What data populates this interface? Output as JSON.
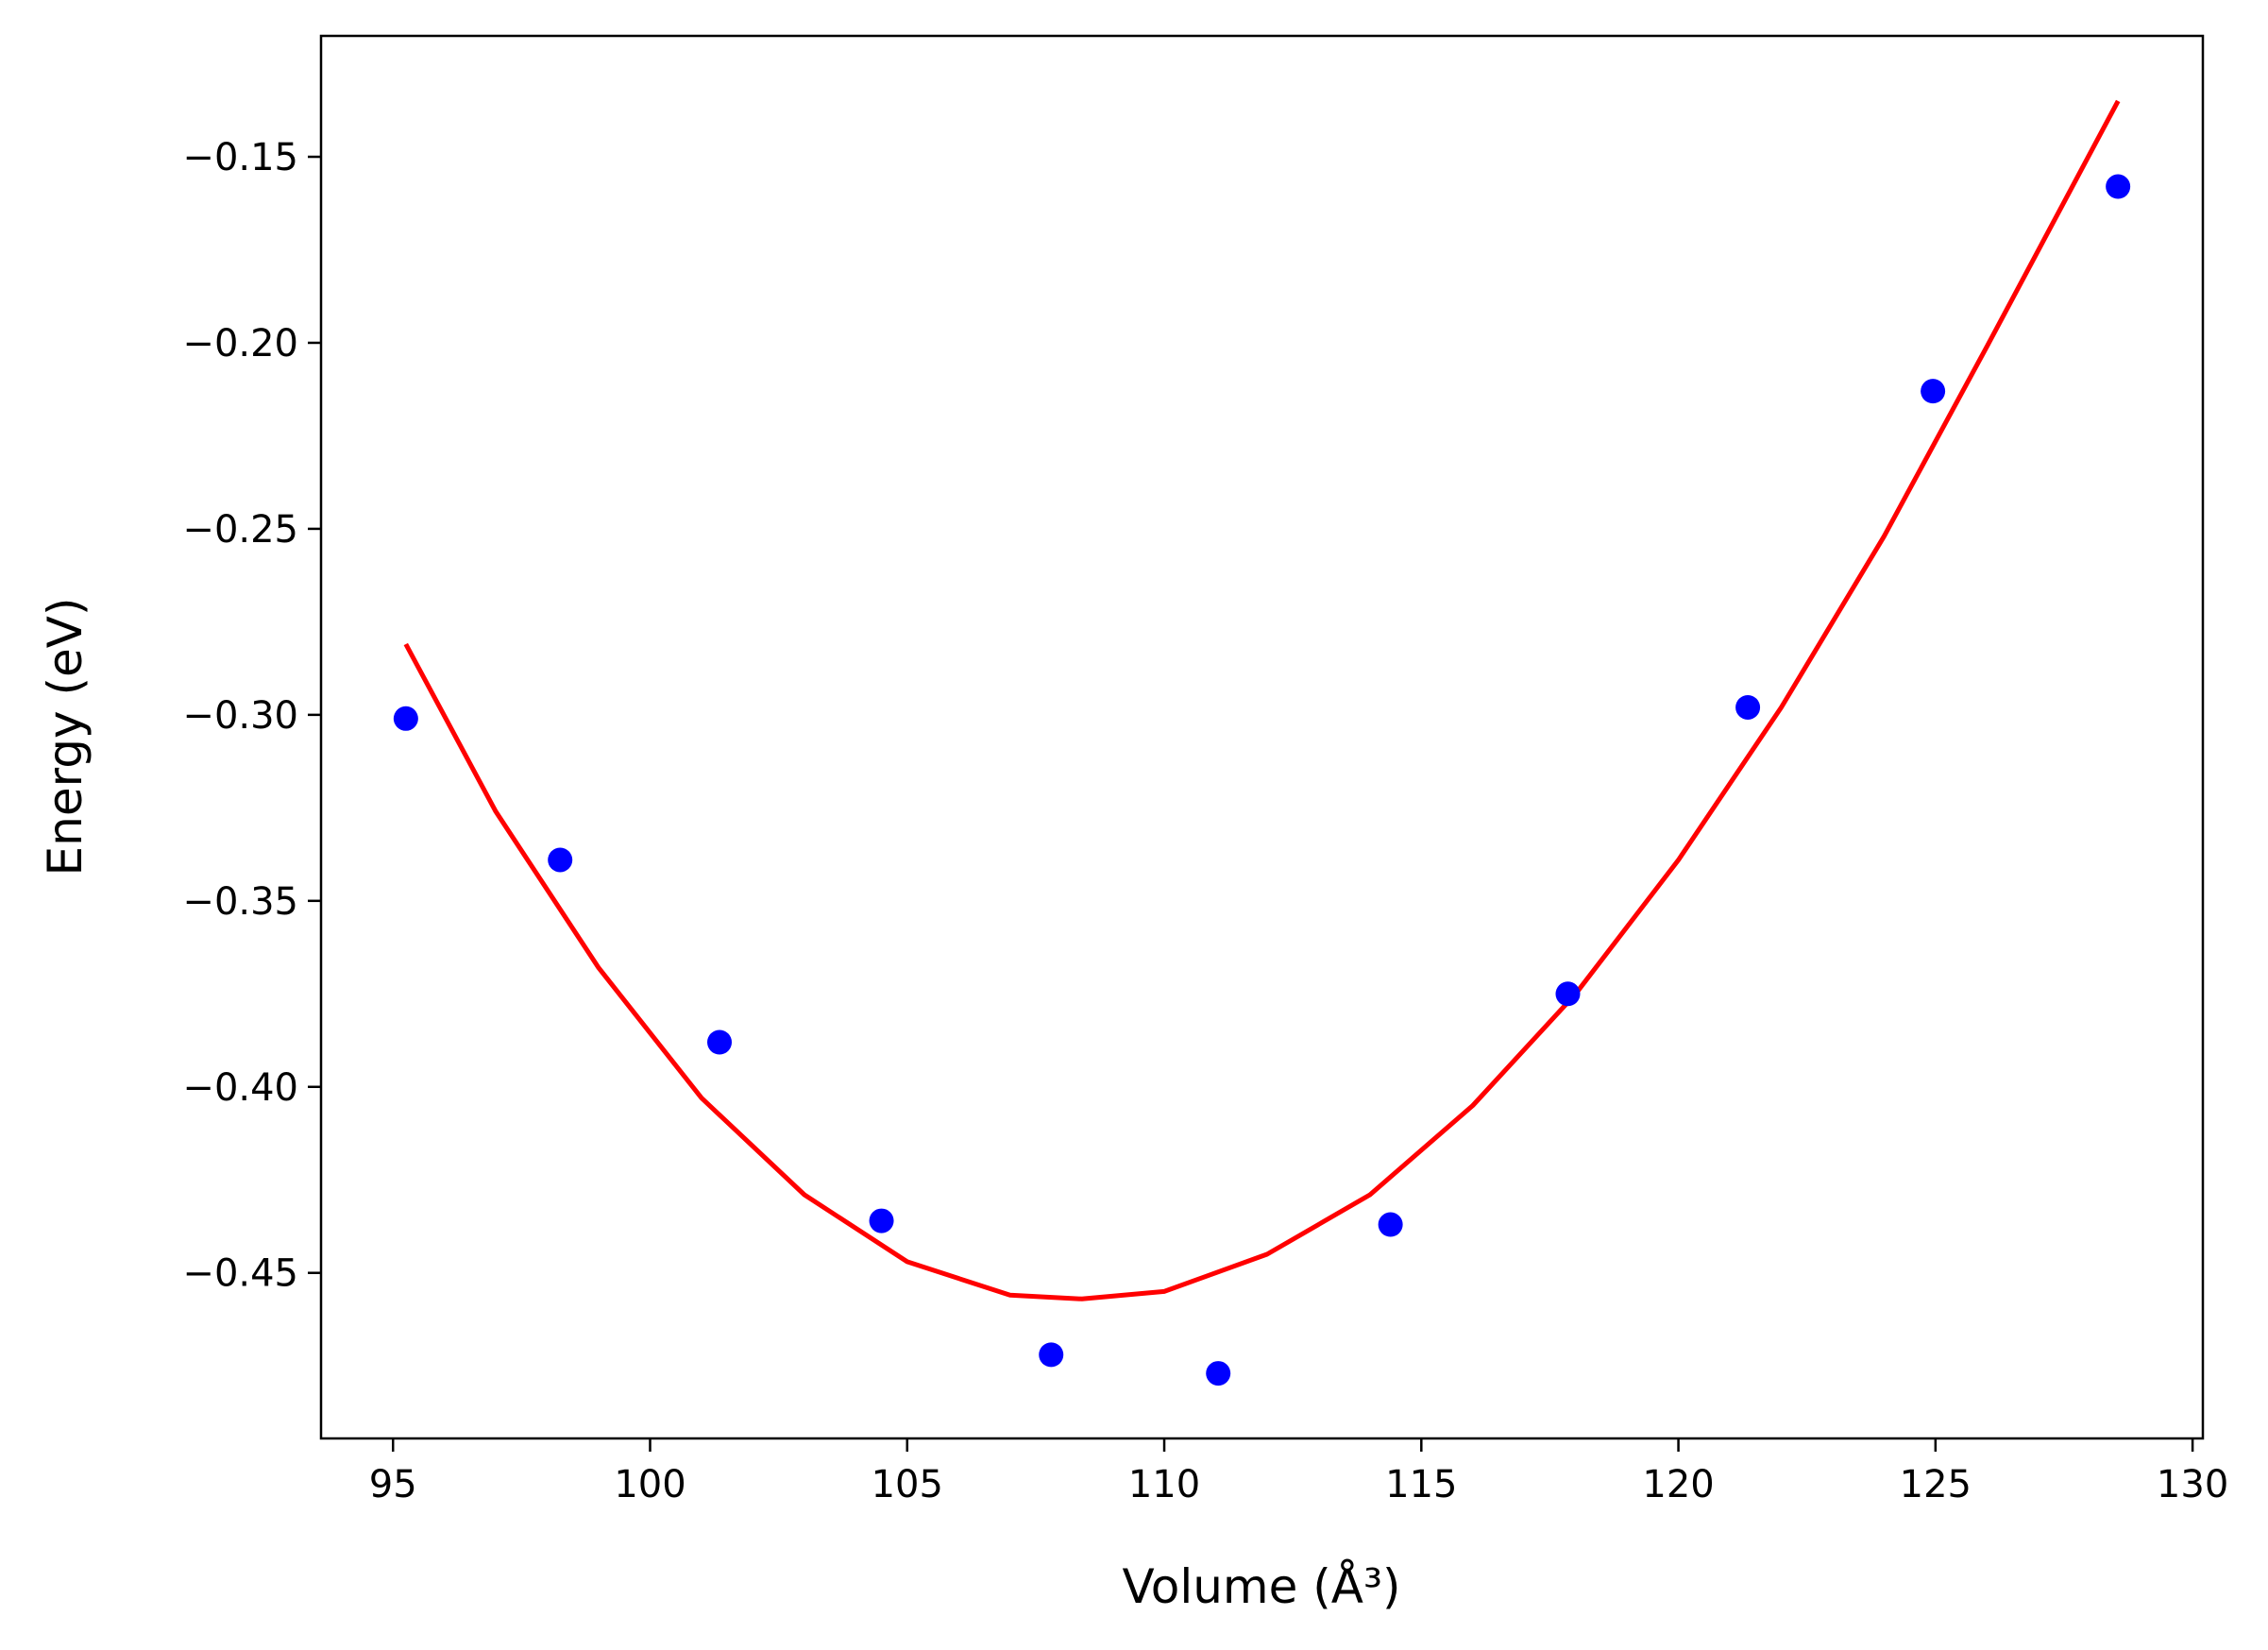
{
  "chart_data": {
    "type": "scatter",
    "title": "",
    "xlabel": "Volume (Å³)",
    "ylabel": "Energy (eV)",
    "xlim": [
      93.6,
      130.2
    ],
    "ylim": [
      -0.4945,
      -0.1175
    ],
    "xticks": [
      95,
      100,
      105,
      110,
      115,
      120,
      125,
      130
    ],
    "yticks": [
      -0.15,
      -0.2,
      -0.25,
      -0.3,
      -0.35,
      -0.4,
      -0.45
    ],
    "xtick_labels": [
      "95",
      "100",
      "105",
      "110",
      "115",
      "120",
      "125",
      "130"
    ],
    "ytick_labels": [
      "−0.15",
      "−0.20",
      "−0.25",
      "−0.30",
      "−0.35",
      "−0.40",
      "−0.45"
    ],
    "grid": false,
    "series": [
      {
        "type": "scatter",
        "color": "#0000ff",
        "x": [
          95.25,
          98.25,
          101.35,
          104.5,
          107.8,
          111.05,
          114.4,
          117.85,
          121.35,
          124.95,
          128.55
        ],
        "y": [
          -0.301,
          -0.339,
          -0.388,
          -0.436,
          -0.472,
          -0.477,
          -0.437,
          -0.375,
          -0.298,
          -0.213,
          -0.158
        ]
      },
      {
        "type": "line",
        "color": "#ff0000",
        "x": [
          95.25,
          97.0,
          99.0,
          101.0,
          103.0,
          105.0,
          107.0,
          108.4,
          110.0,
          112.0,
          114.0,
          116.0,
          118.0,
          120.0,
          122.0,
          124.0,
          126.0,
          128.55
        ],
        "y": [
          -0.281,
          -0.326,
          -0.368,
          -0.403,
          -0.429,
          -0.447,
          -0.456,
          -0.457,
          -0.455,
          -0.445,
          -0.429,
          -0.405,
          -0.375,
          -0.339,
          -0.298,
          -0.252,
          -0.201,
          -0.135
        ]
      }
    ]
  }
}
